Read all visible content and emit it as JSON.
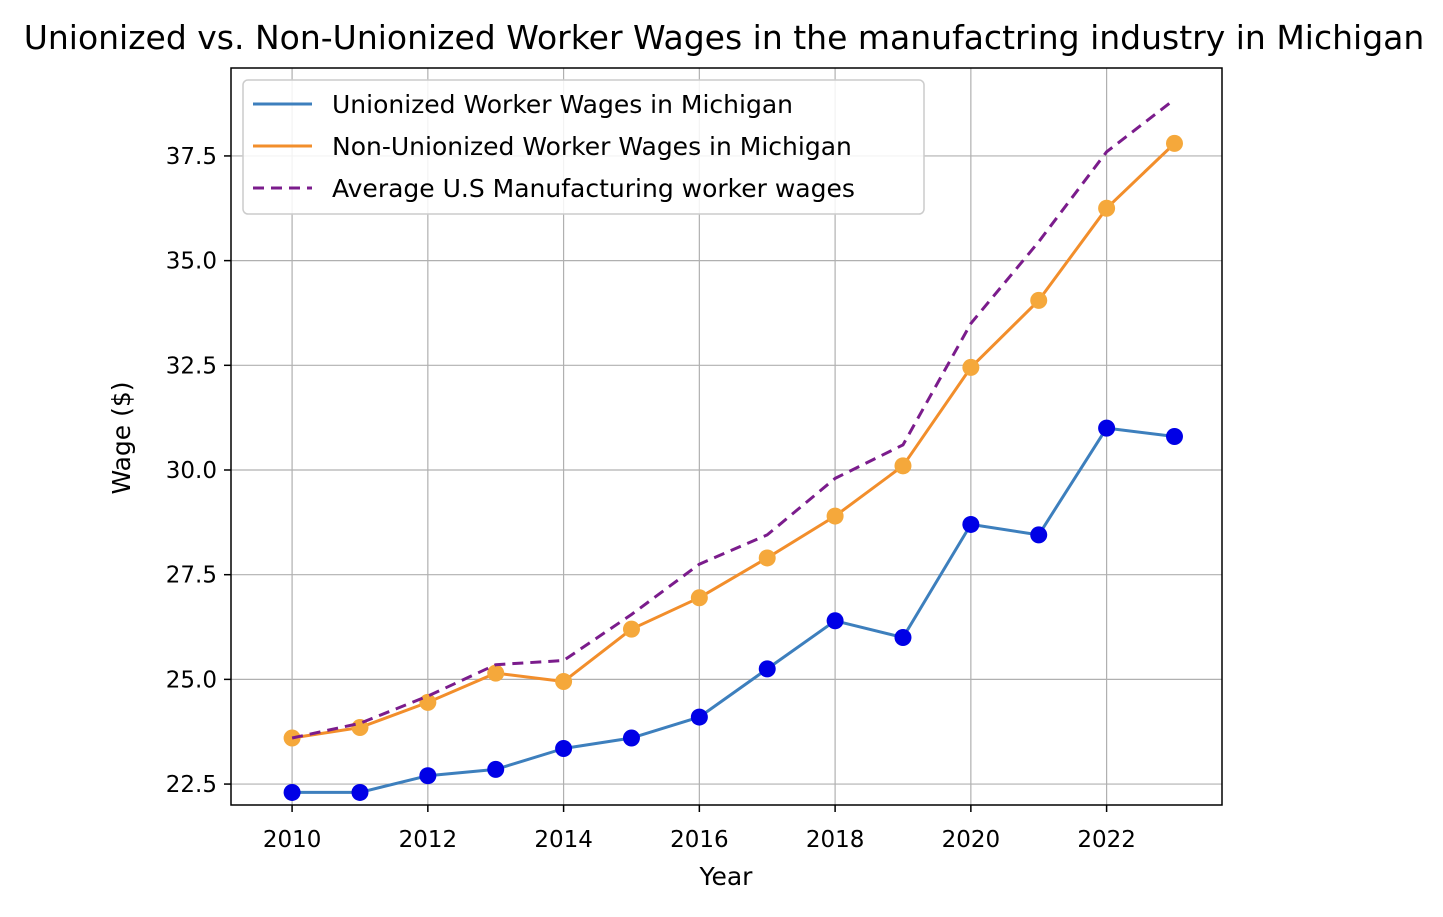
{
  "chart_data": {
    "type": "line",
    "title": "Unionized vs. Non-Unionized Worker Wages in the manufactring industry in Michigan",
    "xlabel": "Year",
    "ylabel": "Wage ($)",
    "xlim": [
      2009.1,
      2023.7
    ],
    "ylim": [
      22.0,
      39.6
    ],
    "xticks": [
      2010,
      2012,
      2014,
      2016,
      2018,
      2020,
      2022
    ],
    "yticks": [
      22.5,
      25.0,
      27.5,
      30.0,
      32.5,
      35.0,
      37.5
    ],
    "grid": true,
    "legend_position": "top-left",
    "x": [
      2010,
      2011,
      2012,
      2013,
      2014,
      2015,
      2016,
      2017,
      2018,
      2019,
      2020,
      2021,
      2022,
      2023
    ],
    "series": [
      {
        "name": "Unionized Worker Wages in Michigan",
        "values": [
          22.3,
          22.3,
          22.7,
          22.85,
          23.35,
          23.6,
          24.1,
          25.25,
          26.4,
          26.0,
          28.7,
          28.45,
          31.0,
          30.8
        ],
        "line_color": "#3d7fbd",
        "marker_color": "#0000e6",
        "style": "solid"
      },
      {
        "name": "Non-Unionized Worker Wages in Michigan",
        "values": [
          23.6,
          23.85,
          24.45,
          25.15,
          24.95,
          26.2,
          26.95,
          27.9,
          28.9,
          30.1,
          32.45,
          34.05,
          36.25,
          37.8
        ],
        "line_color": "#f28e2b",
        "marker_color": "#f5a83b",
        "style": "solid"
      },
      {
        "name": "Average U.S Manufacturing worker wages",
        "values": [
          23.6,
          23.95,
          24.6,
          25.35,
          25.45,
          26.55,
          27.75,
          28.45,
          29.8,
          30.6,
          33.5,
          35.45,
          37.6,
          38.85
        ],
        "line_color": "#7b1c8c",
        "style": "dashed"
      }
    ]
  }
}
